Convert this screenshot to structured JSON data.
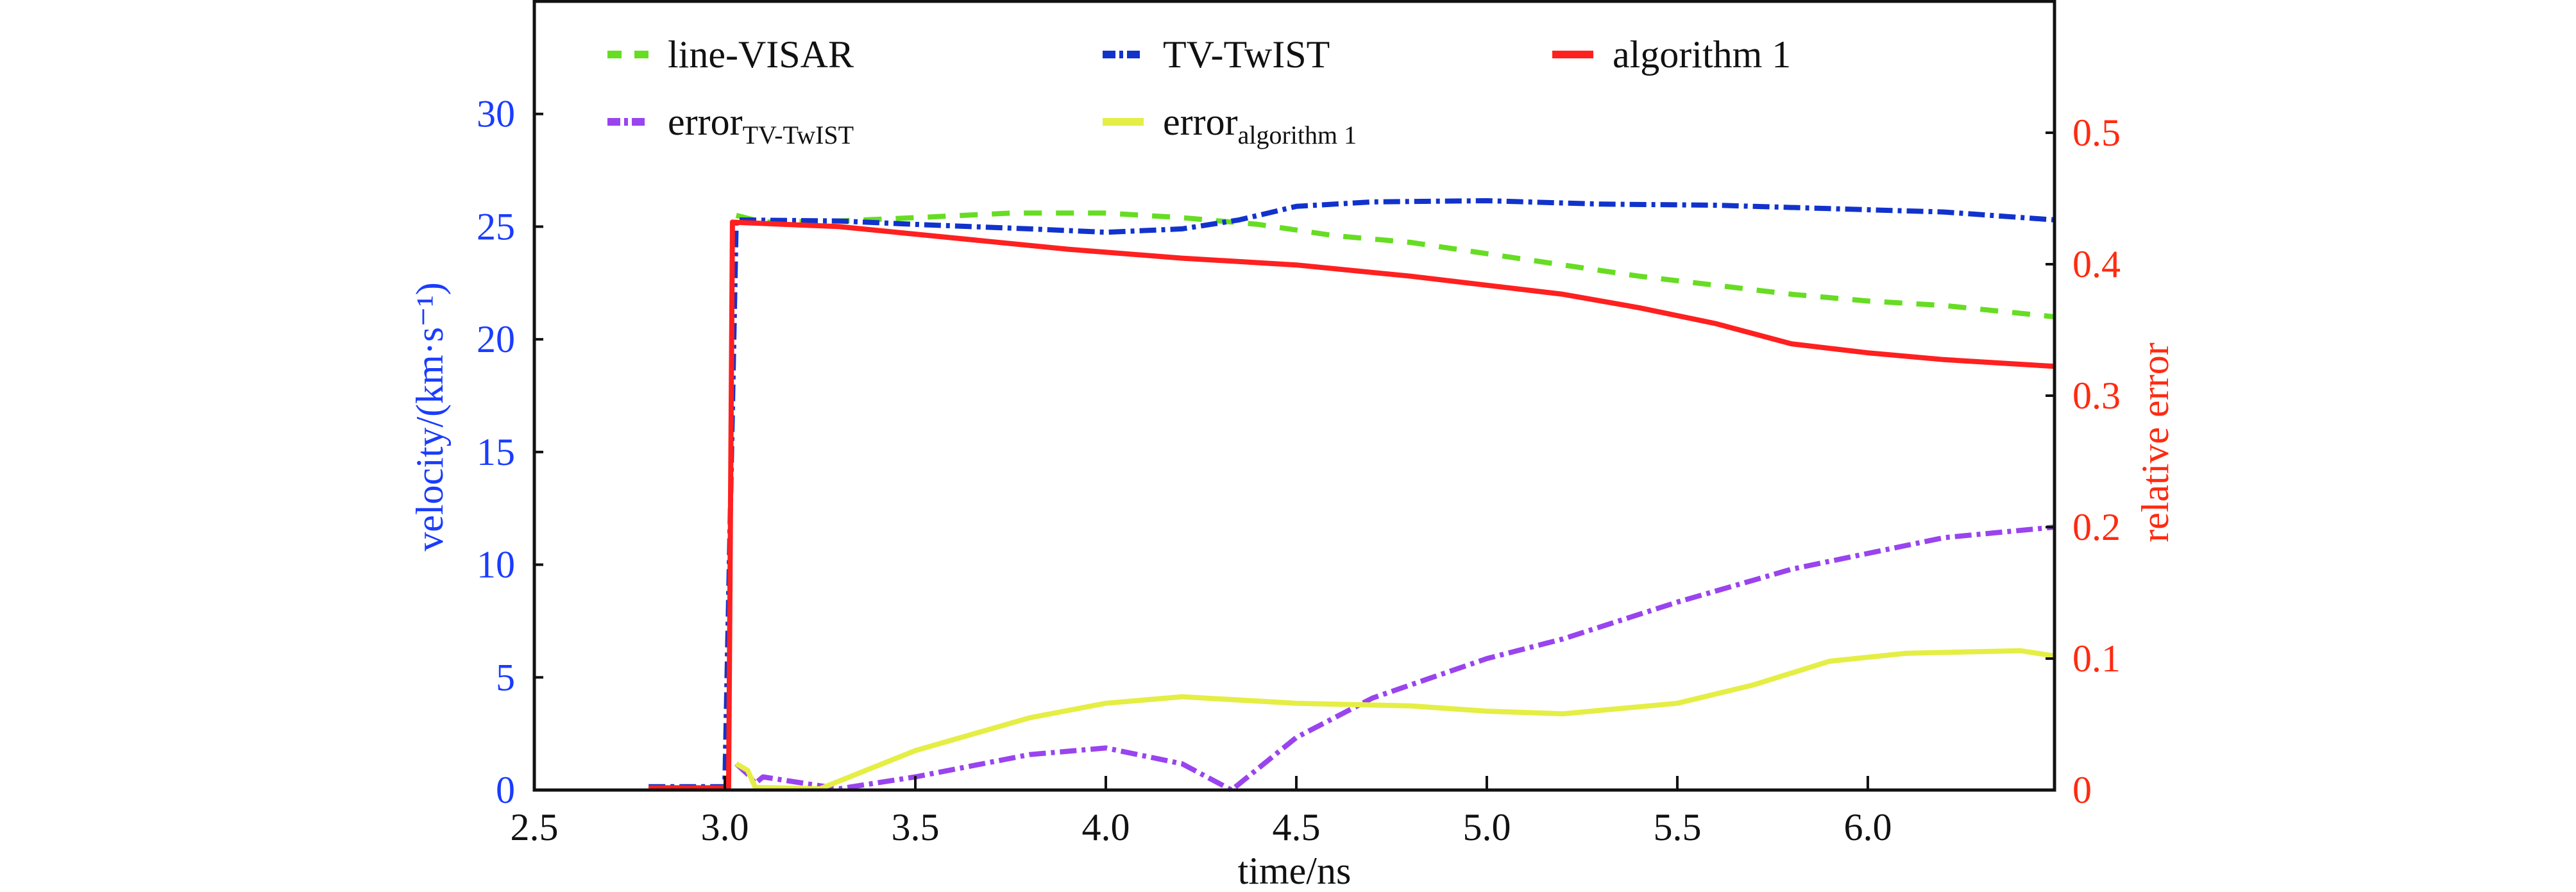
{
  "chart_data": {
    "type": "line",
    "xlabel": "time/ns",
    "ylabel_left": "velocity/(km·s⁻¹)",
    "ylabel_right": "relative error",
    "xlim": [
      2.5,
      6.49
    ],
    "ylim_left": [
      0,
      35
    ],
    "ylim_right": [
      0,
      0.6
    ],
    "x_ticks": [
      "2.5",
      "3.0",
      "3.5",
      "4.0",
      "4.5",
      "5.0",
      "5.5",
      "6.0"
    ],
    "x_tick_values": [
      2.5,
      3.0,
      3.5,
      4.0,
      4.5,
      5.0,
      5.5,
      6.0
    ],
    "y_left_ticks": [
      "0",
      "5",
      "10",
      "15",
      "20",
      "25",
      "30"
    ],
    "y_left_tick_values": [
      0,
      5,
      10,
      15,
      20,
      25,
      30
    ],
    "y_right_ticks": [
      "0",
      "0.1",
      "0.2",
      "0.3",
      "0.4",
      "0.5"
    ],
    "y_right_tick_values": [
      0,
      0.1,
      0.2,
      0.3,
      0.4,
      0.5
    ],
    "grid": false,
    "legend_placement": "top-inside",
    "series": [
      {
        "name": "line-VISAR",
        "label": "line-VISAR",
        "axis": "left",
        "color": "#66dd22",
        "dash": "28,22",
        "x": [
          3.03,
          3.1,
          3.3,
          3.5,
          3.75,
          4.0,
          4.2,
          4.4,
          4.6,
          4.8,
          5.0,
          5.2,
          5.4,
          5.6,
          5.8,
          6.0,
          6.2,
          6.49
        ],
        "y": [
          25.5,
          25.2,
          25.25,
          25.4,
          25.6,
          25.6,
          25.4,
          25.1,
          24.6,
          24.3,
          23.8,
          23.3,
          22.8,
          22.4,
          22.0,
          21.7,
          21.5,
          21.0
        ]
      },
      {
        "name": "TV-TwIST",
        "label": "TV-TwIST",
        "axis": "left",
        "color": "#1133cc",
        "dash": "26,8,6,8",
        "x": [
          2.8,
          3.0,
          3.03,
          3.3,
          3.5,
          3.8,
          4.0,
          4.2,
          4.35,
          4.5,
          4.7,
          5.0,
          5.3,
          5.6,
          5.9,
          6.2,
          6.49
        ],
        "y": [
          0.15,
          0.15,
          25.3,
          25.25,
          25.1,
          24.9,
          24.75,
          24.9,
          25.3,
          25.9,
          26.1,
          26.15,
          26.0,
          25.95,
          25.8,
          25.65,
          25.3
        ]
      },
      {
        "name": "algorithm 1",
        "label": "algorithm 1",
        "axis": "left",
        "color": "#ff2020",
        "dash": "",
        "x": [
          2.8,
          3.01,
          3.02,
          3.3,
          3.6,
          3.9,
          4.2,
          4.5,
          4.8,
          5.0,
          5.2,
          5.4,
          5.6,
          5.8,
          6.0,
          6.2,
          6.49
        ],
        "y": [
          0.1,
          0.1,
          25.2,
          25.0,
          24.5,
          24.0,
          23.6,
          23.3,
          22.8,
          22.4,
          22.0,
          21.4,
          20.7,
          19.8,
          19.4,
          19.1,
          18.8
        ]
      },
      {
        "name": "error TV-TwIST",
        "label": "error",
        "subscript": "TV-TwIST",
        "axis": "right",
        "color": "#9944ee",
        "dash": "26,8,6,8",
        "x": [
          3.03,
          3.06,
          3.08,
          3.1,
          3.3,
          3.5,
          3.8,
          4.0,
          4.2,
          4.33,
          4.5,
          4.7,
          5.0,
          5.2,
          5.5,
          5.8,
          6.0,
          6.2,
          6.49
        ],
        "y": [
          0.02,
          0.012,
          0.005,
          0.01,
          0.001,
          0.01,
          0.027,
          0.032,
          0.02,
          0.0,
          0.04,
          0.07,
          0.1,
          0.115,
          0.143,
          0.168,
          0.18,
          0.192,
          0.2
        ]
      },
      {
        "name": "error algorithm 1",
        "label": "error",
        "subscript": "algorithm 1",
        "axis": "right",
        "color": "#e5ee44",
        "dash": "",
        "x": [
          3.03,
          3.06,
          3.08,
          3.25,
          3.5,
          3.8,
          4.0,
          4.2,
          4.5,
          4.8,
          5.0,
          5.2,
          5.5,
          5.7,
          5.9,
          6.1,
          6.4,
          6.49
        ],
        "y": [
          0.02,
          0.015,
          0.002,
          0.001,
          0.03,
          0.055,
          0.066,
          0.071,
          0.066,
          0.064,
          0.06,
          0.058,
          0.066,
          0.08,
          0.098,
          0.104,
          0.106,
          0.102
        ]
      }
    ]
  }
}
